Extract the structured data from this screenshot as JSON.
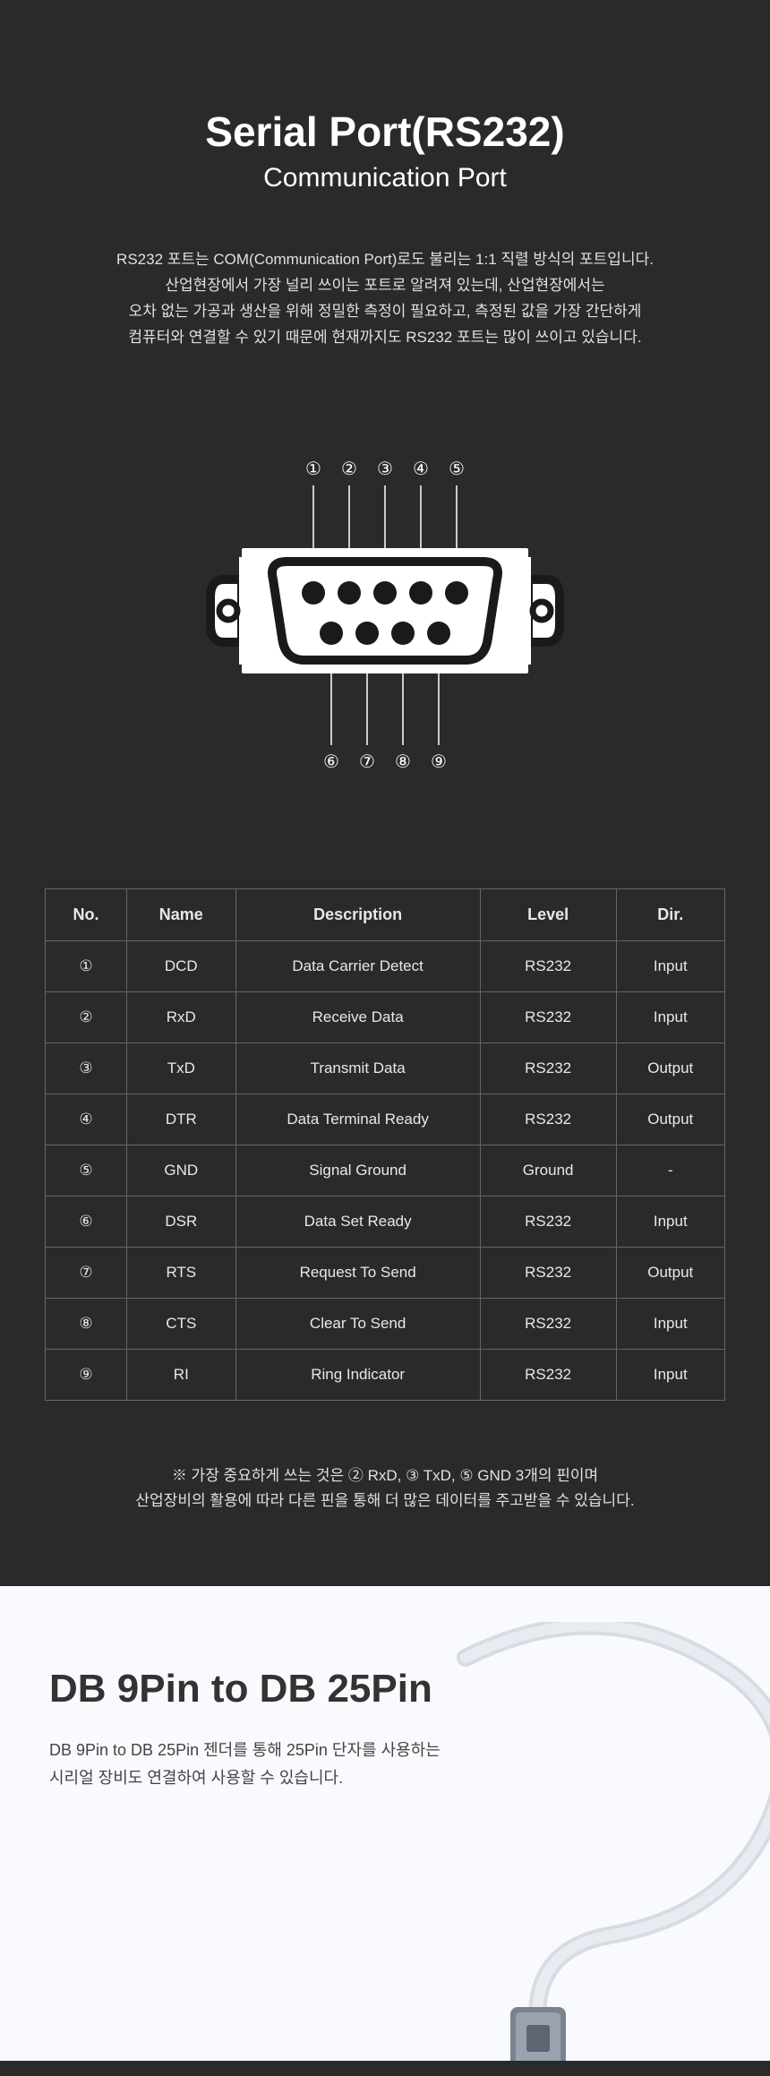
{
  "header": {
    "title": "Serial Port(RS232)",
    "subtitle": "Communication Port",
    "description": "RS232 포트는 COM(Communication Port)로도 불리는 1:1 직렬 방식의 포트입니다.\n산업현장에서 가장 널리 쓰이는 포트로 알려져 있는데, 산업현장에서는\n오차 없는 가공과 생산을 위해 정밀한 측정이 필요하고, 측정된 값을 가장 간단하게\n컴퓨터와 연결할 수 있기 때문에 현재까지도 RS232 포트는 많이 쓰이고 있습니다."
  },
  "connector": {
    "top_pins": [
      "①",
      "②",
      "③",
      "④",
      "⑤"
    ],
    "bottom_pins": [
      "⑥",
      "⑦",
      "⑧",
      "⑨"
    ],
    "body_color": "#ffffff",
    "stroke_color": "#1a1a1a",
    "pin_hole_color": "#1a1a1a",
    "label_color": "#ffffff"
  },
  "table": {
    "headers": [
      "No.",
      "Name",
      "Description",
      "Level",
      "Dir."
    ],
    "col_widths": [
      "12%",
      "16%",
      "36%",
      "20%",
      "16%"
    ],
    "rows": [
      [
        "①",
        "DCD",
        "Data Carrier Detect",
        "RS232",
        "Input"
      ],
      [
        "②",
        "RxD",
        "Receive Data",
        "RS232",
        "Input"
      ],
      [
        "③",
        "TxD",
        "Transmit Data",
        "RS232",
        "Output"
      ],
      [
        "④",
        "DTR",
        "Data Terminal Ready",
        "RS232",
        "Output"
      ],
      [
        "⑤",
        "GND",
        "Signal Ground",
        "Ground",
        "-"
      ],
      [
        "⑥",
        "DSR",
        "Data Set Ready",
        "RS232",
        "Input"
      ],
      [
        "⑦",
        "RTS",
        "Request To Send",
        "RS232",
        "Output"
      ],
      [
        "⑧",
        "CTS",
        "Clear To Send",
        "RS232",
        "Input"
      ],
      [
        "⑨",
        "RI",
        "Ring Indicator",
        "RS232",
        "Input"
      ]
    ]
  },
  "note": "※ 가장 중요하게 쓰는 것은 ② RxD, ③ TxD, ⑤ GND 3개의 핀이며\n산업장비의 활용에 따라 다른 핀을 통해 더 많은 데이터를 주고받을 수 있습니다.",
  "light_section": {
    "title": "DB 9Pin to DB 25Pin",
    "description": "DB 9Pin to DB 25Pin 젠더를 통해 25Pin 단자를 사용하는\n시리얼 장비도 연결하여 사용할 수 있습니다."
  },
  "colors": {
    "dark_bg": "#2a2a2a",
    "light_bg": "#f8fafd",
    "text_light": "#ffffff",
    "text_desc": "#e0e0e0",
    "text_dark": "#333333",
    "border": "#666666"
  }
}
